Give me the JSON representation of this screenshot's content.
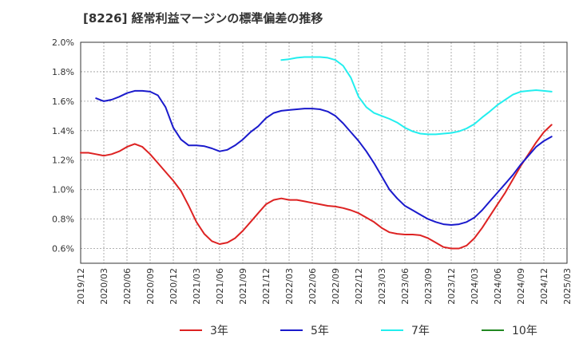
{
  "chart_data": {
    "type": "line",
    "title": "[8226]  経常利益マージンの標準偏差の推移",
    "xlabel": "",
    "ylabel": "",
    "ylim": [
      0.5,
      2.0
    ],
    "yticks": [
      "0.6%",
      "0.8%",
      "1.0%",
      "1.2%",
      "1.4%",
      "1.6%",
      "1.8%",
      "2.0%"
    ],
    "ytick_values": [
      0.6,
      0.8,
      1.0,
      1.2,
      1.4,
      1.6,
      1.8,
      2.0
    ],
    "xticks": [
      "2019/12",
      "2020/03",
      "2020/06",
      "2020/09",
      "2020/12",
      "2021/03",
      "2021/06",
      "2021/09",
      "2021/12",
      "2022/03",
      "2022/06",
      "2022/09",
      "2022/12",
      "2023/03",
      "2023/06",
      "2023/09",
      "2023/12",
      "2024/03",
      "2024/06",
      "2024/09",
      "2024/12",
      "2025/03"
    ],
    "grid": true,
    "legend_position": "bottom",
    "series": [
      {
        "name": "3年",
        "color": "#dd2222",
        "points": [
          [
            "2019/12",
            1.25
          ],
          [
            "2020/01",
            1.25
          ],
          [
            "2020/02",
            1.24
          ],
          [
            "2020/03",
            1.23
          ],
          [
            "2020/04",
            1.24
          ],
          [
            "2020/05",
            1.26
          ],
          [
            "2020/06",
            1.29
          ],
          [
            "2020/07",
            1.31
          ],
          [
            "2020/08",
            1.29
          ],
          [
            "2020/09",
            1.24
          ],
          [
            "2020/10",
            1.18
          ],
          [
            "2020/11",
            1.12
          ],
          [
            "2020/12",
            1.06
          ],
          [
            "2021/01",
            0.99
          ],
          [
            "2021/02",
            0.89
          ],
          [
            "2021/03",
            0.78
          ],
          [
            "2021/04",
            0.7
          ],
          [
            "2021/05",
            0.65
          ],
          [
            "2021/06",
            0.63
          ],
          [
            "2021/07",
            0.64
          ],
          [
            "2021/08",
            0.67
          ],
          [
            "2021/09",
            0.72
          ],
          [
            "2021/10",
            0.78
          ],
          [
            "2021/11",
            0.84
          ],
          [
            "2021/12",
            0.9
          ],
          [
            "2022/01",
            0.93
          ],
          [
            "2022/02",
            0.94
          ],
          [
            "2022/03",
            0.93
          ],
          [
            "2022/04",
            0.93
          ],
          [
            "2022/05",
            0.92
          ],
          [
            "2022/06",
            0.91
          ],
          [
            "2022/07",
            0.9
          ],
          [
            "2022/08",
            0.89
          ],
          [
            "2022/09",
            0.885
          ],
          [
            "2022/10",
            0.875
          ],
          [
            "2022/11",
            0.86
          ],
          [
            "2022/12",
            0.84
          ],
          [
            "2023/01",
            0.81
          ],
          [
            "2023/02",
            0.78
          ],
          [
            "2023/03",
            0.74
          ],
          [
            "2023/04",
            0.71
          ],
          [
            "2023/05",
            0.7
          ],
          [
            "2023/06",
            0.695
          ],
          [
            "2023/07",
            0.695
          ],
          [
            "2023/08",
            0.69
          ],
          [
            "2023/09",
            0.67
          ],
          [
            "2023/10",
            0.64
          ],
          [
            "2023/11",
            0.61
          ],
          [
            "2023/12",
            0.6
          ],
          [
            "2024/01",
            0.6
          ],
          [
            "2024/02",
            0.62
          ],
          [
            "2024/03",
            0.67
          ],
          [
            "2024/04",
            0.74
          ],
          [
            "2024/05",
            0.82
          ],
          [
            "2024/06",
            0.9
          ],
          [
            "2024/07",
            0.98
          ],
          [
            "2024/08",
            1.07
          ],
          [
            "2024/09",
            1.16
          ],
          [
            "2024/10",
            1.24
          ],
          [
            "2024/11",
            1.32
          ],
          [
            "2024/12",
            1.39
          ],
          [
            "2025/01",
            1.44
          ]
        ]
      },
      {
        "name": "5年",
        "color": "#1a1acc",
        "points": [
          [
            "2020/02",
            1.62
          ],
          [
            "2020/03",
            1.6
          ],
          [
            "2020/04",
            1.61
          ],
          [
            "2020/05",
            1.63
          ],
          [
            "2020/06",
            1.655
          ],
          [
            "2020/07",
            1.67
          ],
          [
            "2020/08",
            1.67
          ],
          [
            "2020/09",
            1.665
          ],
          [
            "2020/10",
            1.64
          ],
          [
            "2020/11",
            1.56
          ],
          [
            "2020/12",
            1.42
          ],
          [
            "2021/01",
            1.34
          ],
          [
            "2021/02",
            1.3
          ],
          [
            "2021/03",
            1.3
          ],
          [
            "2021/04",
            1.295
          ],
          [
            "2021/05",
            1.28
          ],
          [
            "2021/06",
            1.26
          ],
          [
            "2021/07",
            1.27
          ],
          [
            "2021/08",
            1.3
          ],
          [
            "2021/09",
            1.34
          ],
          [
            "2021/10",
            1.39
          ],
          [
            "2021/11",
            1.43
          ],
          [
            "2021/12",
            1.485
          ],
          [
            "2022/01",
            1.52
          ],
          [
            "2022/02",
            1.535
          ],
          [
            "2022/03",
            1.54
          ],
          [
            "2022/04",
            1.545
          ],
          [
            "2022/05",
            1.55
          ],
          [
            "2022/06",
            1.55
          ],
          [
            "2022/07",
            1.545
          ],
          [
            "2022/08",
            1.53
          ],
          [
            "2022/09",
            1.5
          ],
          [
            "2022/10",
            1.45
          ],
          [
            "2022/11",
            1.39
          ],
          [
            "2022/12",
            1.33
          ],
          [
            "2023/01",
            1.26
          ],
          [
            "2023/02",
            1.18
          ],
          [
            "2023/03",
            1.09
          ],
          [
            "2023/04",
            1.0
          ],
          [
            "2023/05",
            0.94
          ],
          [
            "2023/06",
            0.89
          ],
          [
            "2023/07",
            0.86
          ],
          [
            "2023/08",
            0.83
          ],
          [
            "2023/09",
            0.8
          ],
          [
            "2023/10",
            0.78
          ],
          [
            "2023/11",
            0.765
          ],
          [
            "2023/12",
            0.76
          ],
          [
            "2024/01",
            0.765
          ],
          [
            "2024/02",
            0.78
          ],
          [
            "2024/03",
            0.81
          ],
          [
            "2024/04",
            0.86
          ],
          [
            "2024/05",
            0.92
          ],
          [
            "2024/06",
            0.98
          ],
          [
            "2024/07",
            1.04
          ],
          [
            "2024/08",
            1.1
          ],
          [
            "2024/09",
            1.17
          ],
          [
            "2024/10",
            1.23
          ],
          [
            "2024/11",
            1.29
          ],
          [
            "2024/12",
            1.33
          ],
          [
            "2025/01",
            1.36
          ]
        ]
      },
      {
        "name": "7年",
        "color": "#22eeee",
        "points": [
          [
            "2022/02",
            1.88
          ],
          [
            "2022/03",
            1.885
          ],
          [
            "2022/04",
            1.895
          ],
          [
            "2022/05",
            1.9
          ],
          [
            "2022/06",
            1.9
          ],
          [
            "2022/07",
            1.9
          ],
          [
            "2022/08",
            1.895
          ],
          [
            "2022/09",
            1.88
          ],
          [
            "2022/10",
            1.84
          ],
          [
            "2022/11",
            1.76
          ],
          [
            "2022/12",
            1.63
          ],
          [
            "2023/01",
            1.56
          ],
          [
            "2023/02",
            1.52
          ],
          [
            "2023/03",
            1.5
          ],
          [
            "2023/04",
            1.48
          ],
          [
            "2023/05",
            1.455
          ],
          [
            "2023/06",
            1.42
          ],
          [
            "2023/07",
            1.395
          ],
          [
            "2023/08",
            1.38
          ],
          [
            "2023/09",
            1.375
          ],
          [
            "2023/10",
            1.375
          ],
          [
            "2023/11",
            1.38
          ],
          [
            "2023/12",
            1.385
          ],
          [
            "2024/01",
            1.395
          ],
          [
            "2024/02",
            1.415
          ],
          [
            "2024/03",
            1.445
          ],
          [
            "2024/04",
            1.49
          ],
          [
            "2024/05",
            1.53
          ],
          [
            "2024/06",
            1.575
          ],
          [
            "2024/07",
            1.61
          ],
          [
            "2024/08",
            1.645
          ],
          [
            "2024/09",
            1.665
          ],
          [
            "2024/10",
            1.67
          ],
          [
            "2024/11",
            1.675
          ],
          [
            "2024/12",
            1.67
          ],
          [
            "2025/01",
            1.665
          ]
        ]
      },
      {
        "name": "10年",
        "color": "#228822",
        "points": []
      }
    ]
  }
}
